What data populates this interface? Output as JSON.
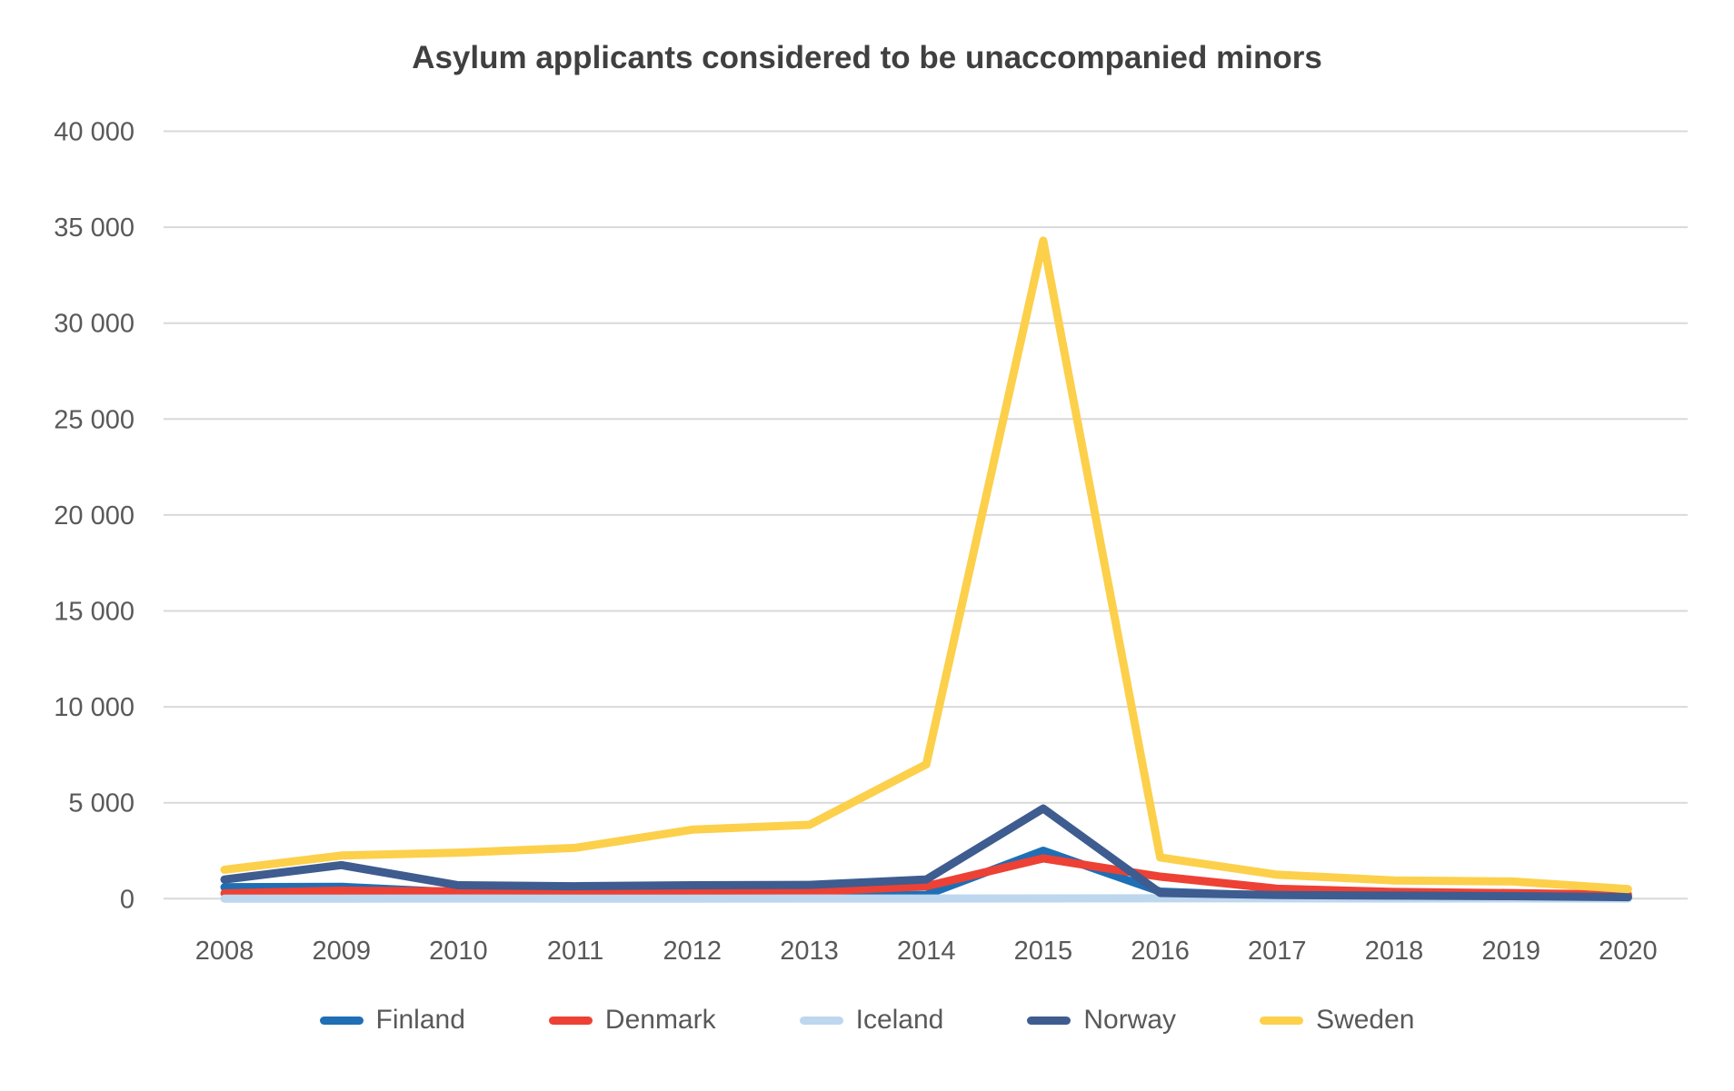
{
  "chart_data": {
    "type": "line",
    "title": "Asylum applicants considered to be unaccompanied minors",
    "xlabel": "",
    "ylabel": "",
    "x": [
      2008,
      2009,
      2010,
      2011,
      2012,
      2013,
      2014,
      2015,
      2016,
      2017,
      2018,
      2019,
      2020
    ],
    "series": [
      {
        "name": "Finland",
        "color": "#1F6FB5",
        "values": [
          600,
          620,
          330,
          150,
          150,
          160,
          200,
          2500,
          370,
          140,
          110,
          100,
          90
        ]
      },
      {
        "name": "Denmark",
        "color": "#ED4135",
        "values": [
          280,
          420,
          380,
          270,
          320,
          360,
          650,
          2100,
          1150,
          520,
          350,
          290,
          210
        ]
      },
      {
        "name": "Iceland",
        "color": "#BDD7EE",
        "values": [
          5,
          5,
          10,
          5,
          5,
          10,
          10,
          15,
          20,
          20,
          10,
          15,
          10
        ]
      },
      {
        "name": "Norway",
        "color": "#3E5C8F",
        "values": [
          1000,
          1750,
          700,
          650,
          700,
          720,
          1000,
          4700,
          300,
          190,
          160,
          130,
          80
        ]
      },
      {
        "name": "Sweden",
        "color": "#FCD04B",
        "values": [
          1510,
          2250,
          2400,
          2650,
          3600,
          3850,
          7000,
          34300,
          2150,
          1250,
          950,
          900,
          500
        ]
      }
    ],
    "ylim": [
      0,
      40000
    ],
    "ytick_step": 5000,
    "ytick_labels": [
      "0",
      "5 000",
      "10 000",
      "15 000",
      "20 000",
      "25 000",
      "30 000",
      "35 000",
      "40 000"
    ],
    "grid": "horizontal",
    "legend_position": "bottom",
    "colors": {
      "axis_text": "#595959",
      "title_text": "#404040",
      "gridline": "#D9D9D9",
      "background": "#FFFFFF"
    }
  }
}
